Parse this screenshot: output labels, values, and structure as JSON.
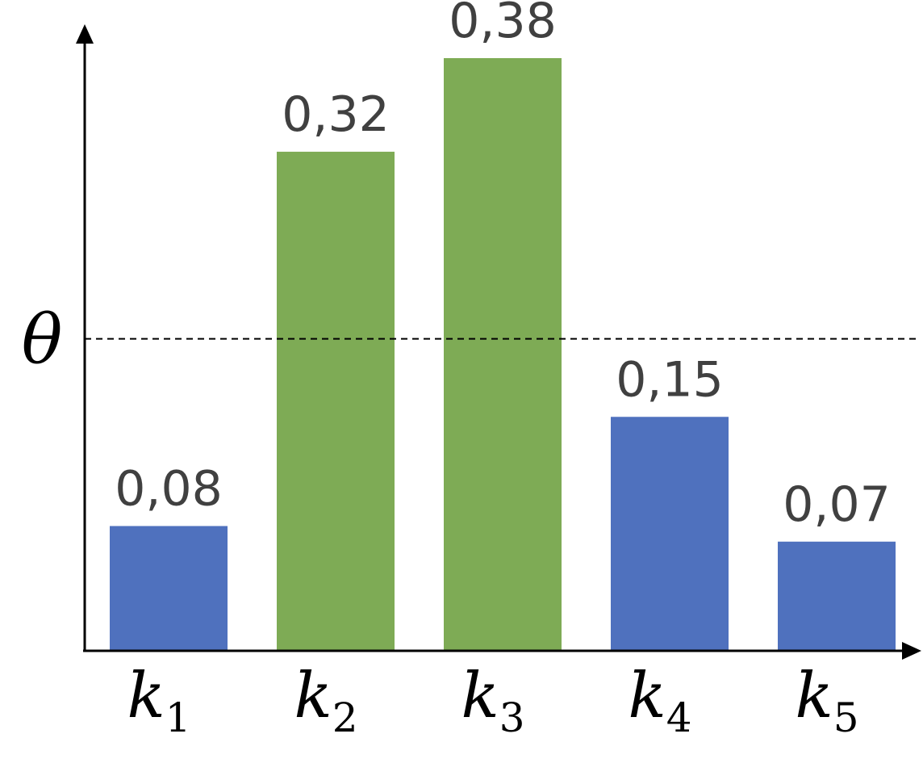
{
  "chart_data": {
    "type": "bar",
    "categories": [
      {
        "letter": "k",
        "index": "1"
      },
      {
        "letter": "k",
        "index": "2"
      },
      {
        "letter": "k",
        "index": "3"
      },
      {
        "letter": "k",
        "index": "4"
      },
      {
        "letter": "k",
        "index": "5"
      }
    ],
    "values": [
      0.08,
      0.32,
      0.38,
      0.15,
      0.07
    ],
    "value_labels": [
      "0,08",
      "0,32",
      "0,38",
      "0,15",
      "0,07"
    ],
    "highlighted": [
      false,
      true,
      true,
      false,
      false
    ],
    "threshold": {
      "label": "θ",
      "value": 0.2
    },
    "ylim": [
      0,
      0.38
    ],
    "title": "",
    "xlabel": "",
    "ylabel": "",
    "grid": false,
    "colors": {
      "below_threshold": "#4F71BE",
      "above_threshold": "#7EAB55",
      "axis": "#000000",
      "label": "#404040"
    }
  }
}
